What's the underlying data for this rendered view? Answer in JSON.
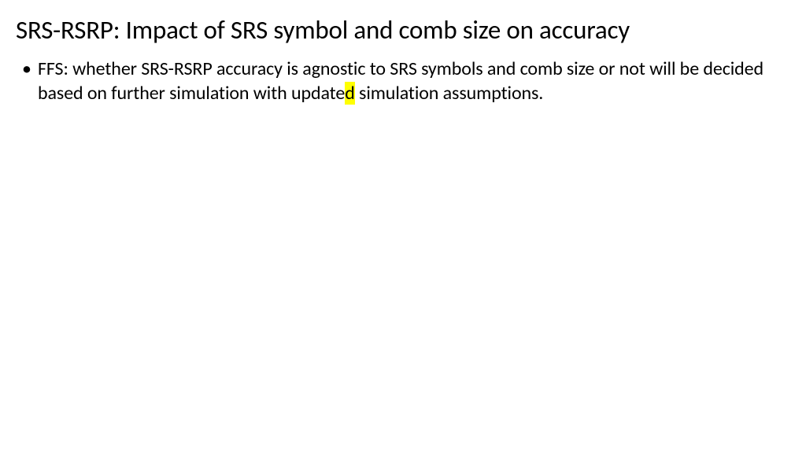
{
  "slide": {
    "title": "SRS-RSRP: Impact of SRS symbol and comb size on accuracy",
    "bullet": {
      "text_before": "FFS: whether SRS-RSRP accuracy is agnostic to SRS symbols and comb size or not will be decided based on further simulation with update",
      "highlighted": "d",
      "text_after": " simulation assumptions."
    },
    "styling": {
      "background_color": "#ffffff",
      "title_color": "#000000",
      "title_fontsize": 33,
      "body_color": "#000000",
      "body_fontsize": 24,
      "highlight_color": "#ffff00"
    }
  }
}
